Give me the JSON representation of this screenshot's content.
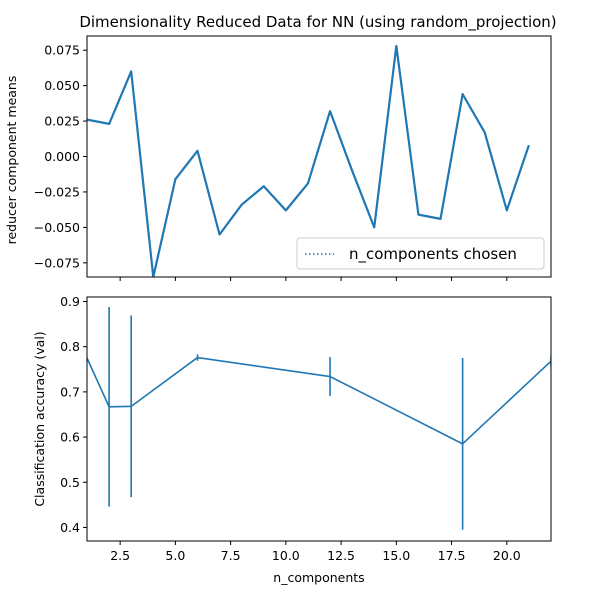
{
  "chart_data": [
    {
      "type": "line",
      "title": "Dimensionality Reduced Data for NN (using random_projection)",
      "xlabel": "",
      "ylabel": "reducer component means",
      "xlim": [
        1,
        22
      ],
      "ylim": [
        -0.085,
        0.085
      ],
      "yticks": [
        0.075,
        0.05,
        0.025,
        0.0,
        -0.025,
        -0.05,
        -0.075
      ],
      "ytick_labels": [
        "0.075",
        "0.050",
        "0.025",
        "0.000",
        "−0.025",
        "−0.050",
        "−0.075"
      ],
      "xticks": [
        2.5,
        5.0,
        7.5,
        10.0,
        12.5,
        15.0,
        17.5,
        20.0
      ],
      "grid": false,
      "color": "#1f77b4",
      "series": [
        {
          "x": [
            1,
            2,
            3,
            4,
            5,
            6,
            7,
            8,
            9,
            10,
            11,
            12,
            13,
            14,
            15,
            16,
            17,
            18,
            19,
            20,
            21
          ],
          "y": [
            0.026,
            0.023,
            0.06,
            -0.085,
            -0.016,
            0.004,
            -0.055,
            -0.034,
            -0.021,
            -0.038,
            -0.019,
            0.032,
            -0.01,
            -0.05,
            0.078,
            -0.041,
            -0.044,
            0.044,
            0.017,
            -0.038,
            0.008
          ]
        }
      ],
      "legend": {
        "placement": "lower-right",
        "entries": [
          "n_components chosen"
        ],
        "line_style": "dotted"
      }
    },
    {
      "type": "line",
      "title": "",
      "xlabel": "n_components",
      "ylabel": "Classification accuracy (val)",
      "xlim": [
        1,
        22
      ],
      "ylim": [
        0.37,
        0.91
      ],
      "yticks": [
        0.4,
        0.5,
        0.6,
        0.7,
        0.8,
        0.9
      ],
      "ytick_labels": [
        "0.4",
        "0.5",
        "0.6",
        "0.7",
        "0.8",
        "0.9"
      ],
      "xticks": [
        2.5,
        5.0,
        7.5,
        10.0,
        12.5,
        15.0,
        17.5,
        20.0
      ],
      "xtick_labels": [
        "2.5",
        "5.0",
        "7.5",
        "10.0",
        "12.5",
        "15.0",
        "17.5",
        "20.0"
      ],
      "grid": false,
      "color": "#1f77b4",
      "series": [
        {
          "x": [
            1,
            2,
            3,
            6,
            12,
            18,
            22
          ],
          "y": [
            0.775,
            0.667,
            0.668,
            0.776,
            0.734,
            0.585,
            0.768
          ],
          "error": [
            0.0,
            0.221,
            0.201,
            0.007,
            0.043,
            0.19,
            0.012
          ]
        }
      ]
    }
  ]
}
